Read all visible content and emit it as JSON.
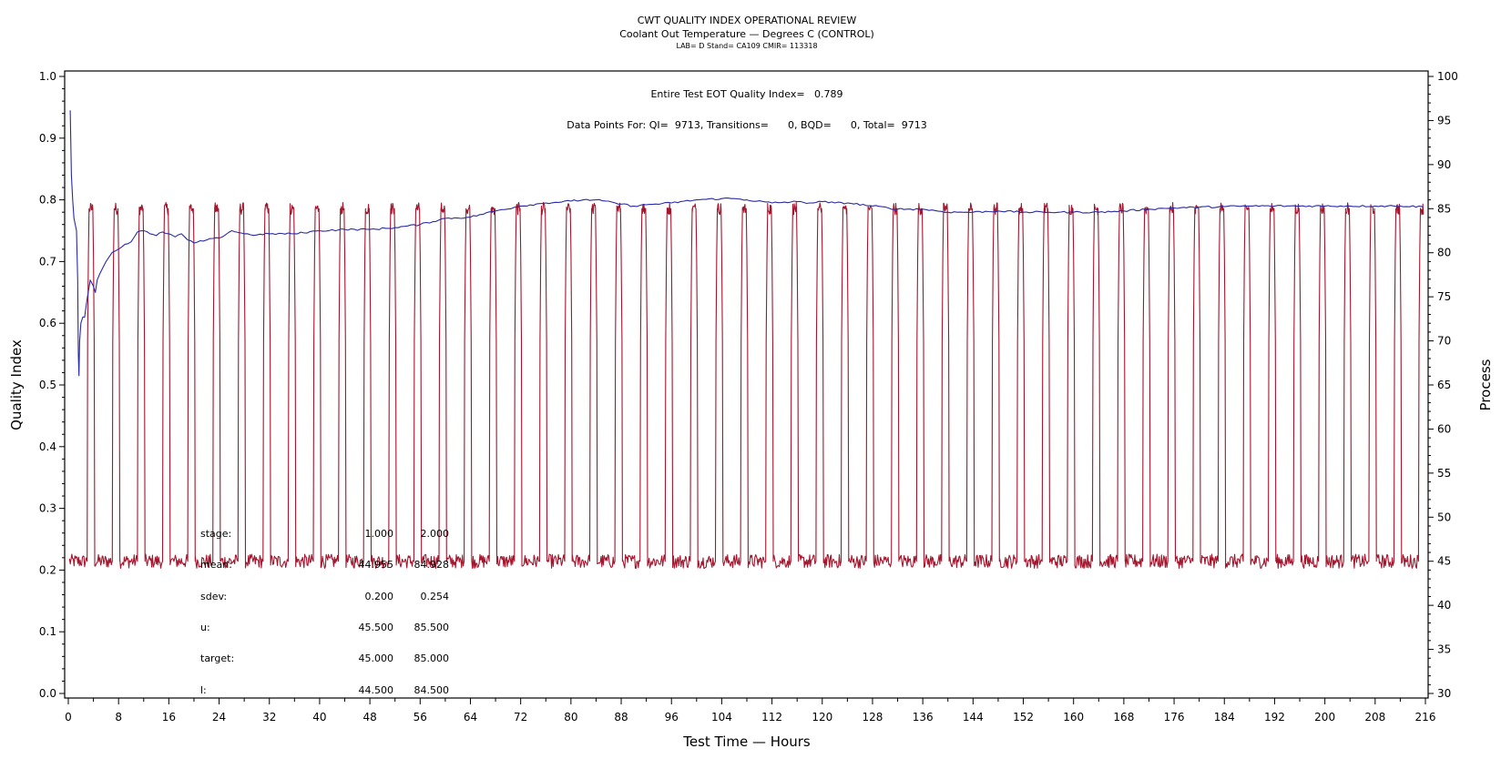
{
  "chart_data": {
    "type": "line",
    "title": "CWT QUALITY INDEX OPERATIONAL REVIEW",
    "subtitle": "Coolant Out Temperature — Degrees C (CONTROL)",
    "subtitle2": "LAB= D Stand= CA109 CMIR= 113318",
    "annotations": {
      "quality_index": "Entire Test EOT Quality Index=   0.789",
      "data_points": "Data Points For: QI=  9713, Transitions=      0, BQD=      0, Total=  9713"
    },
    "xlabel": "Test Time — Hours",
    "ylabel": "Quality Index",
    "y2label": "Process",
    "xlim": [
      0,
      216
    ],
    "ylim": [
      0.0,
      1.0
    ],
    "y2lim": [
      30,
      100
    ],
    "x_ticks": [
      "0",
      "8",
      "16",
      "24",
      "32",
      "40",
      "48",
      "56",
      "64",
      "72",
      "80",
      "88",
      "96",
      "104",
      "112",
      "120",
      "128",
      "136",
      "144",
      "152",
      "160",
      "168",
      "176",
      "184",
      "192",
      "200",
      "208",
      "216"
    ],
    "y_ticks": [
      "0.0",
      "0.1",
      "0.2",
      "0.3",
      "0.4",
      "0.5",
      "0.6",
      "0.7",
      "0.8",
      "0.9",
      "1.0"
    ],
    "y2_ticks": [
      "30",
      "35",
      "40",
      "45",
      "50",
      "55",
      "60",
      "65",
      "70",
      "75",
      "80",
      "85",
      "90",
      "95",
      "100"
    ],
    "grid": false,
    "series": [
      {
        "name": "Quality Index",
        "axis": "left",
        "color": "#2a2aa8",
        "x": [
          0.3,
          0.5,
          0.7,
          0.9,
          1.1,
          1.3,
          1.5,
          1.6,
          1.7,
          1.8,
          2.0,
          2.3,
          2.6,
          3.0,
          3.5,
          4.0,
          4.3,
          4.6,
          5.0,
          6.0,
          7.0,
          8.0,
          9.0,
          10.0,
          11.0,
          12.0,
          13.0,
          14.0,
          15.0,
          16.0,
          17.0,
          18.0,
          19.0,
          20.0,
          22.0,
          24.0,
          26.0,
          28.0,
          30.0,
          32.0,
          36.0,
          40.0,
          44.0,
          48.0,
          52.0,
          56.0,
          60.0,
          64.0,
          68.0,
          72.0,
          76.0,
          80.0,
          82.0,
          84.0,
          88.0,
          90.0,
          92.0,
          96.0,
          100.0,
          104.0,
          106.0,
          108.0,
          112.0,
          116.0,
          118.0,
          120.0,
          122.0,
          124.0,
          128.0,
          132.0,
          136.0,
          140.0,
          144.0,
          148.0,
          152.0,
          156.0,
          160.0,
          164.0,
          168.0,
          172.0,
          176.0,
          180.0,
          184.0,
          188.0,
          192.0,
          196.0,
          200.0,
          204.0,
          208.0,
          212.0,
          215.5
        ],
        "values": [
          0.945,
          0.84,
          0.8,
          0.77,
          0.76,
          0.75,
          0.67,
          0.55,
          0.515,
          0.57,
          0.6,
          0.61,
          0.61,
          0.64,
          0.67,
          0.66,
          0.65,
          0.67,
          0.68,
          0.7,
          0.715,
          0.72,
          0.728,
          0.732,
          0.748,
          0.75,
          0.745,
          0.742,
          0.748,
          0.745,
          0.74,
          0.745,
          0.735,
          0.73,
          0.735,
          0.738,
          0.75,
          0.745,
          0.743,
          0.745,
          0.745,
          0.75,
          0.752,
          0.752,
          0.755,
          0.76,
          0.77,
          0.772,
          0.782,
          0.79,
          0.795,
          0.798,
          0.8,
          0.8,
          0.793,
          0.79,
          0.792,
          0.795,
          0.8,
          0.802,
          0.802,
          0.8,
          0.795,
          0.797,
          0.795,
          0.797,
          0.795,
          0.795,
          0.79,
          0.785,
          0.785,
          0.78,
          0.78,
          0.782,
          0.78,
          0.78,
          0.78,
          0.78,
          0.782,
          0.785,
          0.787,
          0.788,
          0.789,
          0.79,
          0.79,
          0.79,
          0.79,
          0.79,
          0.79,
          0.79,
          0.789
        ]
      },
      {
        "name": "Process (Coolant Out Temperature)",
        "axis": "right",
        "color": "#a3162e",
        "low_level": 45,
        "high_level": 85,
        "pulse_start_hours": [
          3.0,
          7.0,
          11.0,
          15.0,
          19.0,
          23.0,
          27.0,
          31.0,
          35.0,
          39.0,
          43.0,
          47.0,
          51.0,
          55.0,
          59.0,
          63.0,
          67.0,
          71.0,
          75.0,
          79.0,
          83.0,
          87.0,
          91.0,
          95.0,
          99.0,
          103.0,
          107.0,
          111.0,
          115.0,
          119.0,
          123.0,
          127.0,
          131.0,
          135.0,
          139.0,
          143.0,
          147.0,
          151.0,
          155.0,
          159.0,
          163.0,
          167.0,
          171.0,
          175.0,
          179.0,
          183.0,
          187.0,
          191.0,
          195.0,
          199.0,
          203.0,
          207.0,
          211.0,
          214.9
        ],
        "pulse_high_duration_hours": 1.2
      }
    ],
    "stats_table": {
      "rows": [
        {
          "label": "stage:",
          "col1": "1.000",
          "col2": "2.000"
        },
        {
          "label": "mean:",
          "col1": "44.955",
          "col2": "84.928"
        },
        {
          "label": "sdev:",
          "col1": "0.200",
          "col2": "0.254"
        },
        {
          "label": "u:",
          "col1": "45.500",
          "col2": "85.500"
        },
        {
          "label": "target:",
          "col1": "45.000",
          "col2": "85.000"
        },
        {
          "label": "l:",
          "col1": "44.500",
          "col2": "84.500"
        }
      ]
    }
  }
}
